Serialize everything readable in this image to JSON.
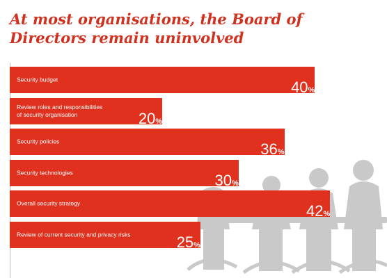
{
  "chart_data": {
    "type": "bar",
    "orientation": "horizontal",
    "title": "At most organisations, the Board of Directors remain uninvolved",
    "unit": "%",
    "xlim": [
      0,
      48
    ],
    "categories": [
      "Security budget",
      "Review roles and responsibilities\nof security organisation",
      "Security policies",
      "Security technologies",
      "Overall security strategy",
      "Review of current security and privacy risks"
    ],
    "values": [
      40,
      20,
      36,
      30,
      42,
      25
    ],
    "colors": {
      "bar": "#e0301e",
      "title": "#d0311f",
      "silhouette": "#c8c8c8"
    }
  }
}
